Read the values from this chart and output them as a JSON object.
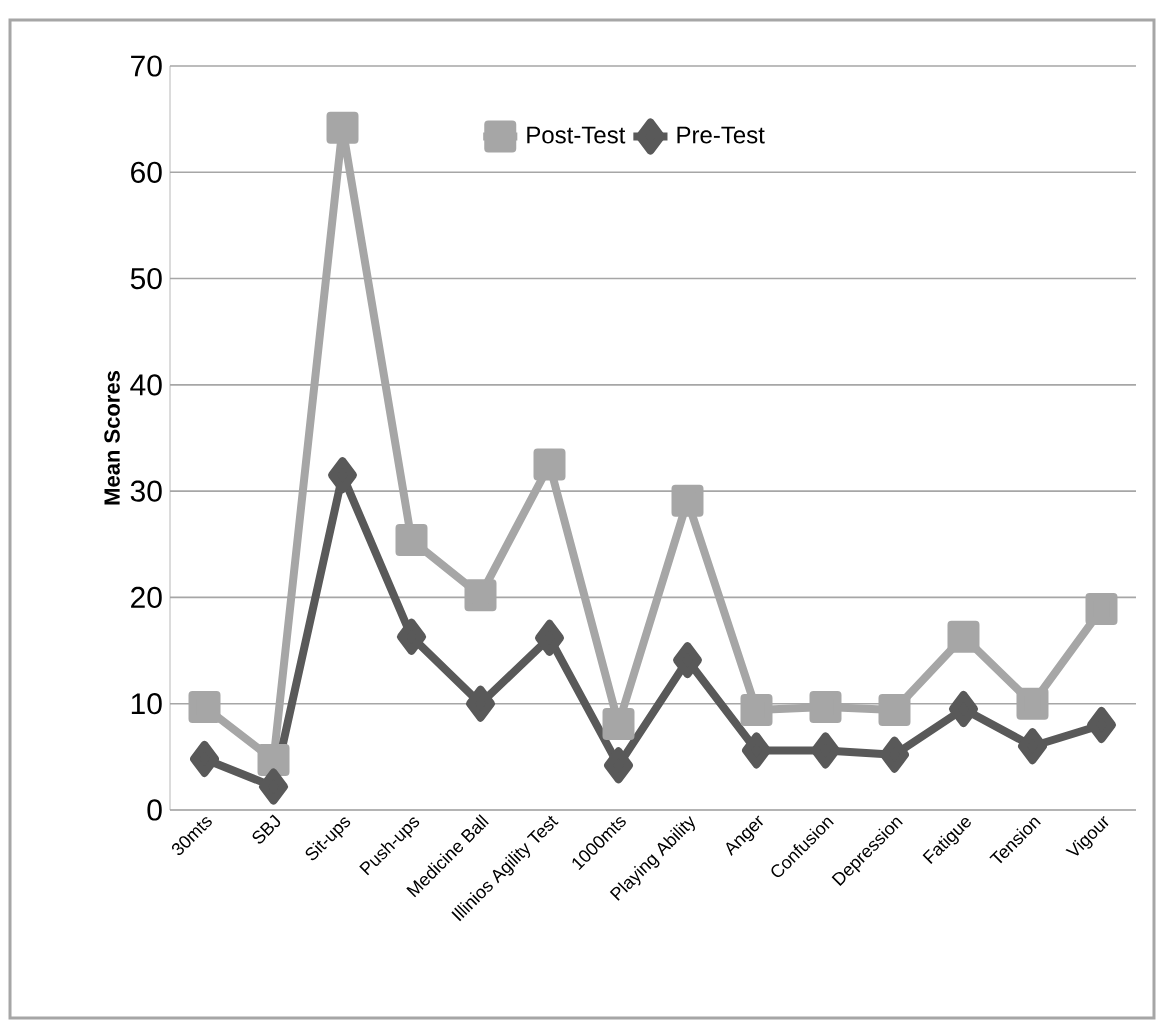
{
  "chart_data": {
    "type": "line",
    "ylabel": "Mean Scores",
    "categories": [
      "30mts",
      "SBJ",
      "Sit-ups",
      "Push-ups",
      "Medicine Ball",
      "Illinios Agility Test",
      "1000mts",
      "Playing Ability",
      "Anger",
      "Confusion",
      "Depression",
      "Fatigue",
      "Tension",
      "Vigour"
    ],
    "series": [
      {
        "name": "Post-Test",
        "color": "#a6a6a6",
        "marker": "square",
        "values": [
          9.7,
          4.7,
          64.2,
          25.4,
          20.2,
          32.5,
          8.1,
          29.1,
          9.4,
          9.7,
          9.4,
          16.3,
          10.0,
          18.9
        ]
      },
      {
        "name": "Pre-Test",
        "color": "#595959",
        "marker": "diamond",
        "values": [
          4.8,
          2.2,
          31.5,
          16.3,
          10.0,
          16.2,
          4.2,
          14.1,
          5.6,
          5.6,
          5.2,
          9.5,
          6.0,
          8.0
        ]
      }
    ],
    "ylim": [
      0,
      70
    ],
    "yticks": [
      0,
      10,
      20,
      30,
      40,
      50,
      60,
      70
    ],
    "grid": "y",
    "legend": "top"
  }
}
